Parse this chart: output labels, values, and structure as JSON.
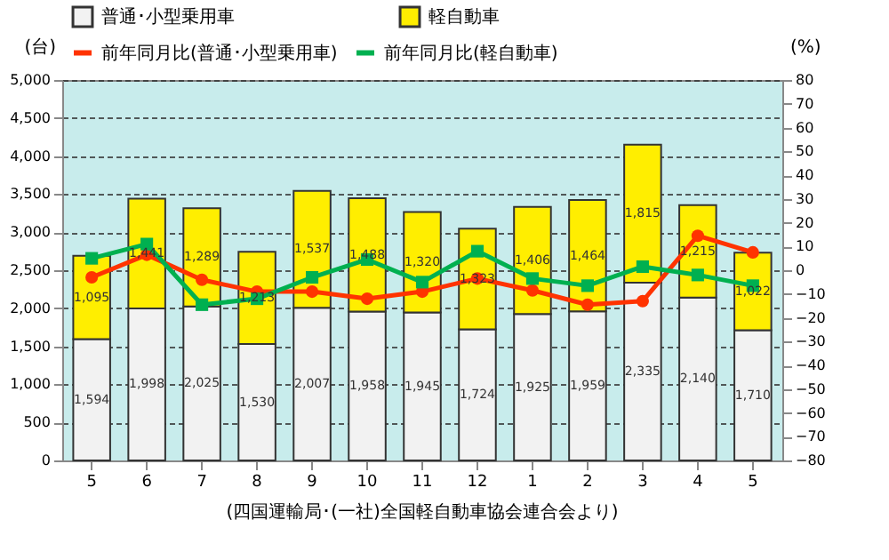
{
  "chart_data": {
    "type": "bar",
    "stacked": true,
    "categories": [
      "5",
      "6",
      "7",
      "8",
      "9",
      "10",
      "11",
      "12",
      "1",
      "2",
      "3",
      "4",
      "5"
    ],
    "ylabel": "(台)",
    "y2label": "(%)",
    "ylim": [
      0,
      5000
    ],
    "yticks": [
      0,
      500,
      {
        "value": 1000,
        "label": "1,000"
      },
      {
        "value": 1500,
        "label": "1,500"
      },
      {
        "value": 2000,
        "label": "2,000"
      },
      {
        "value": 2500,
        "label": "2,500"
      },
      {
        "value": 3000,
        "label": "3,000"
      },
      {
        "value": 3500,
        "label": "3,500"
      },
      {
        "value": 4000,
        "label": "4,000"
      },
      {
        "value": 4500,
        "label": "4,500"
      },
      {
        "value": 5000,
        "label": "5,000"
      }
    ],
    "y2lim": [
      -80,
      80
    ],
    "y2ticks": [
      -80,
      -70,
      -60,
      -50,
      -40,
      -30,
      -20,
      -10,
      0,
      10,
      20,
      30,
      40,
      50,
      60,
      70,
      80
    ],
    "series": [
      {
        "name": "普通･小型乗用車",
        "color": "#f2f2f2",
        "values": [
          1594,
          1998,
          2025,
          1530,
          2007,
          1958,
          1945,
          1724,
          1925,
          1959,
          2335,
          2140,
          1710
        ],
        "value_labels": [
          "1,594",
          "1,998",
          "2,025",
          "1,530",
          "2,007",
          "1,958",
          "1,945",
          "1,724",
          "1,925",
          "1,959",
          "2,335",
          "2,140",
          "1,710"
        ]
      },
      {
        "name": "軽自動車",
        "color": "#ffee00",
        "values": [
          1095,
          1441,
          1289,
          1213,
          1537,
          1488,
          1320,
          1323,
          1406,
          1464,
          1815,
          1215,
          1022
        ],
        "value_labels": [
          "1,095",
          "1,441",
          "1,289",
          "1,213",
          "1,537",
          "1,488",
          "1,320",
          "1,323",
          "1,406",
          "1,464",
          "1,815",
          "1,215",
          "1,022"
        ]
      },
      {
        "name": "前年同月比(普通･小型乗用車)",
        "type": "line",
        "axis": "y2",
        "marker": "circle",
        "color": "#ff3300",
        "values": [
          -3,
          6.5,
          -4,
          -9,
          -9,
          -12,
          -9,
          -3.5,
          -8.5,
          -14.5,
          -13,
          14.5,
          7.5
        ]
      },
      {
        "name": "前年同月比(軽自動車)",
        "type": "line",
        "axis": "y2",
        "marker": "square",
        "color": "#00b050",
        "values": [
          5,
          11,
          -14.5,
          -12,
          -3,
          4.5,
          -5,
          8,
          -3.5,
          -6.5,
          1.5,
          -2,
          -6.5
        ]
      }
    ],
    "grid": "y",
    "legend": "top",
    "line_style": "solid",
    "annotations": [
      "(四国運輸局･(一社)全国軽自動車協会連合会より)"
    ]
  }
}
